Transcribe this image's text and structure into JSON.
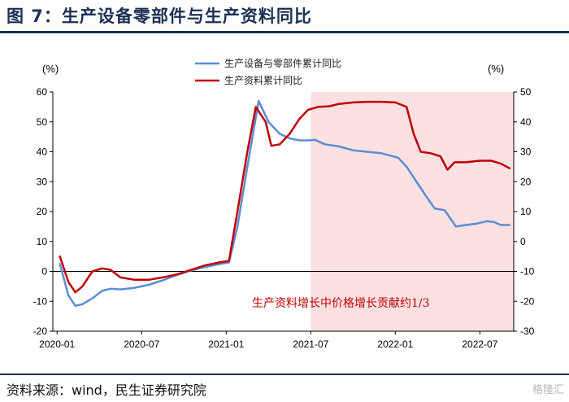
{
  "header": {
    "title": "图 7：生产设备零部件与生产资料同比"
  },
  "footer": {
    "source": "资料来源：wind，民生证券研究院",
    "watermark": "格隆汇"
  },
  "chart_data": {
    "type": "line",
    "title": "",
    "ylabel_left": "(%)",
    "ylabel_right": "(%)",
    "ylim_left": [
      -20,
      60
    ],
    "ylim_right": [
      -30,
      50
    ],
    "yticks_left": [
      -20,
      -10,
      0,
      10,
      20,
      30,
      40,
      50,
      60
    ],
    "yticks_right": [
      -30,
      -20,
      -10,
      0,
      10,
      20,
      30,
      40,
      50
    ],
    "x_tick_labels": [
      "2020-01",
      "2020-07",
      "2021-01",
      "2021-07",
      "2022-01",
      "2022-07"
    ],
    "x_tick_positions": [
      0,
      6,
      12,
      18,
      24,
      30
    ],
    "xlim": [
      0,
      31.5
    ],
    "legend_position": "top-center",
    "grid": false,
    "shaded_region": {
      "x_start": 18,
      "x_end": 31.5,
      "color": "#fde0e2"
    },
    "annotation": "生产资料增长中价格增长贡献约1/3",
    "series": [
      {
        "name": "生产设备与零部件累计同比",
        "axis": "left",
        "color": "#5b8dd2",
        "points": [
          [
            0.2,
            2.5
          ],
          [
            0.8,
            -8
          ],
          [
            1.3,
            -11.5
          ],
          [
            1.8,
            -11
          ],
          [
            2.5,
            -9
          ],
          [
            3.2,
            -6.5
          ],
          [
            3.8,
            -5.8
          ],
          [
            4.5,
            -6
          ],
          [
            5.5,
            -5.5
          ],
          [
            6.5,
            -4.5
          ],
          [
            7.5,
            -3
          ],
          [
            8.5,
            -1.2
          ],
          [
            9.5,
            0.3
          ],
          [
            10.5,
            1.5
          ],
          [
            11.5,
            2.4
          ],
          [
            12.2,
            3
          ],
          [
            12.8,
            15
          ],
          [
            13.5,
            35
          ],
          [
            14.3,
            57
          ],
          [
            15,
            50
          ],
          [
            15.8,
            46
          ],
          [
            16.5,
            44.5
          ],
          [
            17.2,
            43.8
          ],
          [
            17.8,
            43.8
          ],
          [
            18.3,
            44
          ],
          [
            19,
            42.5
          ],
          [
            20,
            41.8
          ],
          [
            21,
            40.5
          ],
          [
            22,
            40
          ],
          [
            23,
            39.5
          ],
          [
            24.2,
            38
          ],
          [
            24.8,
            35
          ],
          [
            25.5,
            30
          ],
          [
            26.2,
            25
          ],
          [
            26.8,
            21
          ],
          [
            27.5,
            20.5
          ],
          [
            28.3,
            15
          ],
          [
            29,
            15.5
          ],
          [
            29.8,
            16
          ],
          [
            30.5,
            16.8
          ],
          [
            31,
            16.5
          ],
          [
            31.5,
            15.5
          ],
          [
            32.1,
            15.5
          ]
        ]
      },
      {
        "name": "生产资料累计同比",
        "axis": "right",
        "color": "#c00000",
        "points": [
          [
            0.2,
            -5
          ],
          [
            0.8,
            -13.5
          ],
          [
            1.3,
            -17
          ],
          [
            1.8,
            -15
          ],
          [
            2.5,
            -10
          ],
          [
            3.2,
            -9
          ],
          [
            3.8,
            -9.5
          ],
          [
            4.5,
            -12
          ],
          [
            5.5,
            -12.8
          ],
          [
            6.5,
            -12.8
          ],
          [
            7.5,
            -12
          ],
          [
            8.5,
            -11
          ],
          [
            9.5,
            -9.5
          ],
          [
            10.5,
            -8
          ],
          [
            11.5,
            -7
          ],
          [
            12.2,
            -6.5
          ],
          [
            12.8,
            10
          ],
          [
            13.5,
            30
          ],
          [
            14.1,
            45
          ],
          [
            14.8,
            40
          ],
          [
            15.2,
            32
          ],
          [
            15.8,
            32.5
          ],
          [
            16.5,
            36
          ],
          [
            17.2,
            41
          ],
          [
            17.8,
            44
          ],
          [
            18.5,
            45
          ],
          [
            19.3,
            45.2
          ],
          [
            20,
            46
          ],
          [
            21,
            46.5
          ],
          [
            22,
            46.7
          ],
          [
            23,
            46.7
          ],
          [
            24,
            46.5
          ],
          [
            24.8,
            45
          ],
          [
            25.3,
            36
          ],
          [
            25.8,
            30
          ],
          [
            26.5,
            29.5
          ],
          [
            27.2,
            28.5
          ],
          [
            27.7,
            24
          ],
          [
            28.2,
            26.5
          ],
          [
            29,
            26.5
          ],
          [
            30,
            27
          ],
          [
            30.8,
            27
          ],
          [
            31.5,
            26
          ],
          [
            32.1,
            24.5
          ]
        ]
      }
    ]
  }
}
